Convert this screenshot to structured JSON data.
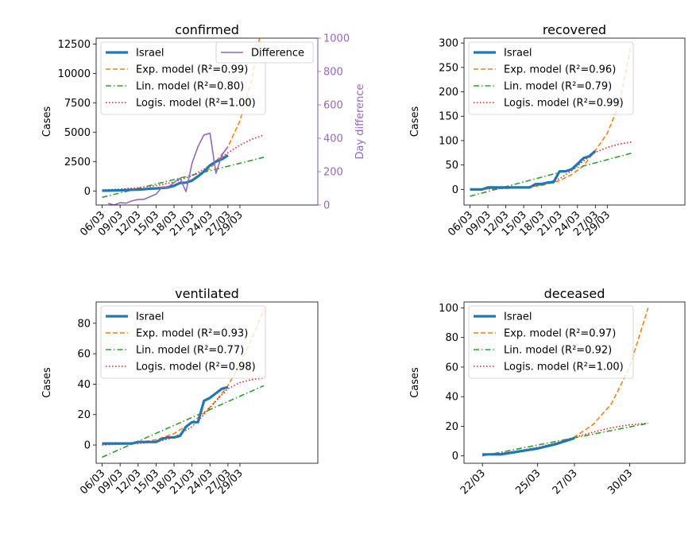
{
  "chart_data": [
    {
      "type": "line",
      "title": "confirmed",
      "xlabel": "",
      "ylabel": "Cases",
      "y2label": "Day difference",
      "xlim": [
        -1,
        36
      ],
      "ylim": [
        -1200,
        13000
      ],
      "y2lim": [
        0,
        1000
      ],
      "yticks": [
        0,
        2500,
        5000,
        7500,
        10000,
        12500
      ],
      "y2ticks": [
        0,
        200,
        400,
        600,
        800,
        1000
      ],
      "xticks": [
        {
          "x": 0,
          "label": "06/03"
        },
        {
          "x": 3,
          "label": "09/03"
        },
        {
          "x": 6,
          "label": "12/03"
        },
        {
          "x": 9,
          "label": "15/03"
        },
        {
          "x": 12,
          "label": "18/03"
        },
        {
          "x": 15,
          "label": "21/03"
        },
        {
          "x": 18,
          "label": "24/03"
        },
        {
          "x": 21,
          "label": "27/03"
        },
        {
          "x": 23,
          "label": "29/03"
        }
      ],
      "legend_position": "upper-left",
      "legend2_position": "upper-right",
      "series": [
        {
          "name": "Israel",
          "color": "#1f77b4",
          "style": "solid-thick",
          "x": [
            0,
            1,
            2,
            3,
            4,
            5,
            6,
            7,
            8,
            9,
            10,
            11,
            12,
            13,
            14,
            15,
            16,
            17,
            18,
            19,
            20,
            21
          ],
          "values": [
            20,
            25,
            39,
            50,
            75,
            97,
            109,
            143,
            193,
            213,
            250,
            298,
            433,
            677,
            705,
            883,
            1238,
            1656,
            2170,
            2495,
            2693,
            3035
          ]
        },
        {
          "name": "Exp. model (R²=0.99)",
          "color": "#ff7f0e",
          "style": "dashed",
          "x": [
            0,
            3,
            6,
            9,
            12,
            15,
            18,
            21,
            23,
            25,
            27
          ],
          "values": [
            30,
            60,
            120,
            240,
            470,
            940,
            1880,
            3750,
            5960,
            9470,
            15050
          ]
        },
        {
          "name": "Lin. model (R²=0.80)",
          "color": "#2ca02c",
          "style": "dashdot",
          "x": [
            0,
            27
          ],
          "values": [
            -550,
            2860
          ]
        },
        {
          "name": "Logis. model (R²=1.00)",
          "color": "#d62728",
          "style": "dotted",
          "x": [
            0,
            3,
            6,
            9,
            12,
            15,
            17,
            19,
            21,
            23,
            25,
            27
          ],
          "values": [
            80,
            150,
            270,
            450,
            750,
            1300,
            1850,
            2550,
            3250,
            3900,
            4400,
            4750
          ]
        }
      ],
      "secondary_series": [
        {
          "name": "Difference",
          "color": "#9467bd",
          "style": "solid",
          "x": [
            1,
            2,
            3,
            4,
            5,
            6,
            7,
            8,
            9,
            10,
            11,
            12,
            13,
            14,
            15,
            16,
            17,
            18,
            19,
            20,
            21
          ],
          "values": [
            10,
            0,
            14,
            11,
            25,
            33,
            34,
            50,
            65,
            107,
            107,
            135,
            160,
            80,
            250,
            350,
            420,
            430,
            190,
            300,
            350
          ]
        }
      ]
    },
    {
      "type": "line",
      "title": "recovered",
      "xlabel": "",
      "ylabel": "Cases",
      "xlim": [
        -1,
        36
      ],
      "ylim": [
        -32,
        310
      ],
      "yticks": [
        0,
        50,
        100,
        150,
        200,
        250,
        300
      ],
      "xticks": [
        {
          "x": 0,
          "label": "06/03"
        },
        {
          "x": 3,
          "label": "09/03"
        },
        {
          "x": 6,
          "label": "12/03"
        },
        {
          "x": 9,
          "label": "15/03"
        },
        {
          "x": 12,
          "label": "18/03"
        },
        {
          "x": 15,
          "label": "21/03"
        },
        {
          "x": 18,
          "label": "24/03"
        },
        {
          "x": 21,
          "label": "27/03"
        },
        {
          "x": 23,
          "label": "29/03"
        }
      ],
      "legend_position": "upper-left",
      "series": [
        {
          "name": "Israel",
          "color": "#1f77b4",
          "style": "solid-thick",
          "x": [
            0,
            1,
            2,
            3,
            4,
            5,
            6,
            7,
            8,
            9,
            10,
            11,
            12,
            13,
            14,
            15,
            16,
            17,
            18,
            19,
            20,
            21
          ],
          "values": [
            0,
            0,
            0,
            4,
            4,
            4,
            4,
            4,
            4,
            4,
            4,
            11,
            11,
            14,
            15,
            37,
            37,
            41,
            52,
            64,
            68,
            79
          ]
        },
        {
          "name": "Exp. model (R²=0.96)",
          "color": "#ff7f0e",
          "style": "dashed",
          "x": [
            0,
            3,
            6,
            9,
            12,
            15,
            17,
            19,
            21,
            23,
            25,
            27
          ],
          "values": [
            0.5,
            1,
            2,
            4,
            8,
            18,
            30,
            48,
            80,
            115,
            175,
            295
          ]
        },
        {
          "name": "Lin. model (R²=0.79)",
          "color": "#2ca02c",
          "style": "dashdot",
          "x": [
            0,
            27
          ],
          "values": [
            -14,
            74
          ]
        },
        {
          "name": "Logis. model (R²=0.99)",
          "color": "#d62728",
          "style": "dotted",
          "x": [
            0,
            3,
            6,
            9,
            12,
            15,
            17,
            19,
            21,
            23,
            25,
            27
          ],
          "values": [
            0,
            1,
            2,
            4,
            9,
            22,
            38,
            58,
            76,
            86,
            93,
            97
          ]
        }
      ]
    },
    {
      "type": "line",
      "title": "ventilated",
      "xlabel": "",
      "ylabel": "Cases",
      "xlim": [
        -1,
        36
      ],
      "ylim": [
        -12,
        94
      ],
      "yticks": [
        0,
        20,
        40,
        60,
        80
      ],
      "xticks": [
        {
          "x": 0,
          "label": "06/03"
        },
        {
          "x": 3,
          "label": "09/03"
        },
        {
          "x": 6,
          "label": "12/03"
        },
        {
          "x": 9,
          "label": "15/03"
        },
        {
          "x": 12,
          "label": "18/03"
        },
        {
          "x": 15,
          "label": "21/03"
        },
        {
          "x": 18,
          "label": "24/03"
        },
        {
          "x": 21,
          "label": "27/03"
        },
        {
          "x": 23,
          "label": "29/03"
        }
      ],
      "legend_position": "upper-left",
      "series": [
        {
          "name": "Israel",
          "color": "#1f77b4",
          "style": "solid-thick",
          "x": [
            0,
            1,
            2,
            3,
            4,
            5,
            6,
            7,
            8,
            9,
            10,
            11,
            12,
            13,
            14,
            15,
            16,
            17,
            18,
            19,
            20,
            21
          ],
          "values": [
            1,
            1,
            1,
            1,
            1,
            1,
            2,
            2,
            2,
            2,
            4,
            5,
            5,
            6,
            12,
            15,
            15,
            29,
            31,
            34,
            37,
            38
          ]
        },
        {
          "name": "Exp. model (R²=0.93)",
          "color": "#ff7f0e",
          "style": "dashed",
          "x": [
            0,
            3,
            6,
            9,
            12,
            15,
            17,
            19,
            21,
            23,
            25,
            27
          ],
          "values": [
            0.5,
            0.8,
            1.6,
            3.5,
            7.5,
            15,
            21,
            29,
            39,
            53,
            70,
            89
          ]
        },
        {
          "name": "Lin. model (R²=0.77)",
          "color": "#2ca02c",
          "style": "dashdot",
          "x": [
            0,
            27
          ],
          "values": [
            -8,
            39
          ]
        },
        {
          "name": "Logis. model (R²=0.98)",
          "color": "#d62728",
          "style": "dotted",
          "x": [
            0,
            3,
            6,
            9,
            12,
            15,
            17,
            19,
            21,
            23,
            25,
            27
          ],
          "values": [
            0,
            0.5,
            1,
            2,
            5,
            12,
            20,
            29,
            37,
            41,
            43,
            44
          ]
        }
      ]
    },
    {
      "type": "line",
      "title": "deceased",
      "xlabel": "",
      "ylabel": "Cases",
      "xlim": [
        -1,
        11
      ],
      "ylim": [
        -5,
        104
      ],
      "yticks": [
        0,
        20,
        40,
        60,
        80,
        100
      ],
      "xticks": [
        {
          "x": 0,
          "label": "22/03"
        },
        {
          "x": 3,
          "label": "25/03"
        },
        {
          "x": 5,
          "label": "27/03"
        },
        {
          "x": 8,
          "label": "30/03"
        }
      ],
      "legend_position": "upper-left",
      "series": [
        {
          "name": "Israel",
          "color": "#1f77b4",
          "style": "solid-thick",
          "x": [
            0,
            1,
            2,
            3,
            4,
            5
          ],
          "values": [
            1,
            1,
            3,
            5,
            8,
            12
          ]
        },
        {
          "name": "Exp. model (R²=0.97)",
          "color": "#ff7f0e",
          "style": "dashed",
          "x": [
            0,
            1,
            2,
            3,
            4,
            5,
            6,
            7,
            8,
            9
          ],
          "values": [
            1,
            1.6,
            3.2,
            5.4,
            8.4,
            12.8,
            21,
            35,
            60,
            100
          ]
        },
        {
          "name": "Lin. model (R²=0.92)",
          "color": "#2ca02c",
          "style": "dashdot",
          "x": [
            0,
            9
          ],
          "values": [
            0,
            22
          ]
        },
        {
          "name": "Logis. model (R²=1.00)",
          "color": "#d62728",
          "style": "dotted",
          "x": [
            0,
            1,
            2,
            3,
            4,
            5,
            6,
            7,
            8,
            9
          ],
          "values": [
            1,
            1.8,
            3.5,
            5.7,
            8.8,
            12.5,
            16,
            19,
            21,
            22
          ]
        }
      ]
    }
  ]
}
